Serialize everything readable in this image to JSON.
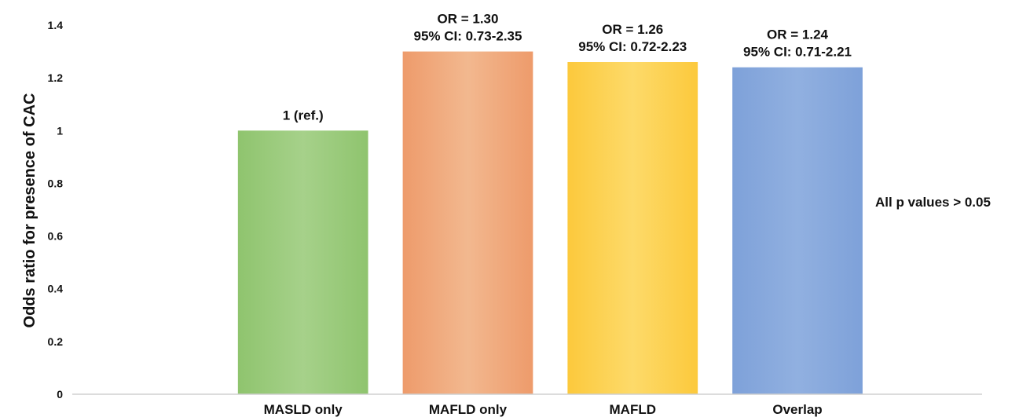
{
  "chart_data": {
    "type": "bar",
    "categories": [
      "MASLD only",
      "MAFLD only",
      "MAFLD",
      "Overlap"
    ],
    "values": [
      1.0,
      1.3,
      1.26,
      1.24
    ],
    "data_labels": [
      [
        "1 (ref.)"
      ],
      [
        "OR = 1.30",
        "95% CI: 0.73-2.35"
      ],
      [
        "OR = 1.26",
        "95% CI: 0.72-2.23"
      ],
      [
        "OR = 1.24",
        "95% CI: 0.71-2.21"
      ]
    ],
    "colors": [
      [
        "#8fc46e",
        "#a6d18a"
      ],
      [
        "#ee9b6b",
        "#f2b88f"
      ],
      [
        "#fcc93c",
        "#fdda6a"
      ],
      [
        "#7ea1d9",
        "#91b0e0"
      ]
    ],
    "title": "",
    "xlabel": "",
    "ylabel": "Odds ratio for presence of CAC",
    "ylim": [
      0,
      1.4
    ],
    "yticks": [
      0,
      0.2,
      0.4,
      0.6,
      0.8,
      1,
      1.2,
      1.4
    ],
    "ytick_labels": [
      "0",
      "0.2",
      "0.4",
      "0.6",
      "0.8",
      "1",
      "1.2",
      "1.4"
    ],
    "grid": false,
    "annotation": "All p values > 0.05"
  }
}
